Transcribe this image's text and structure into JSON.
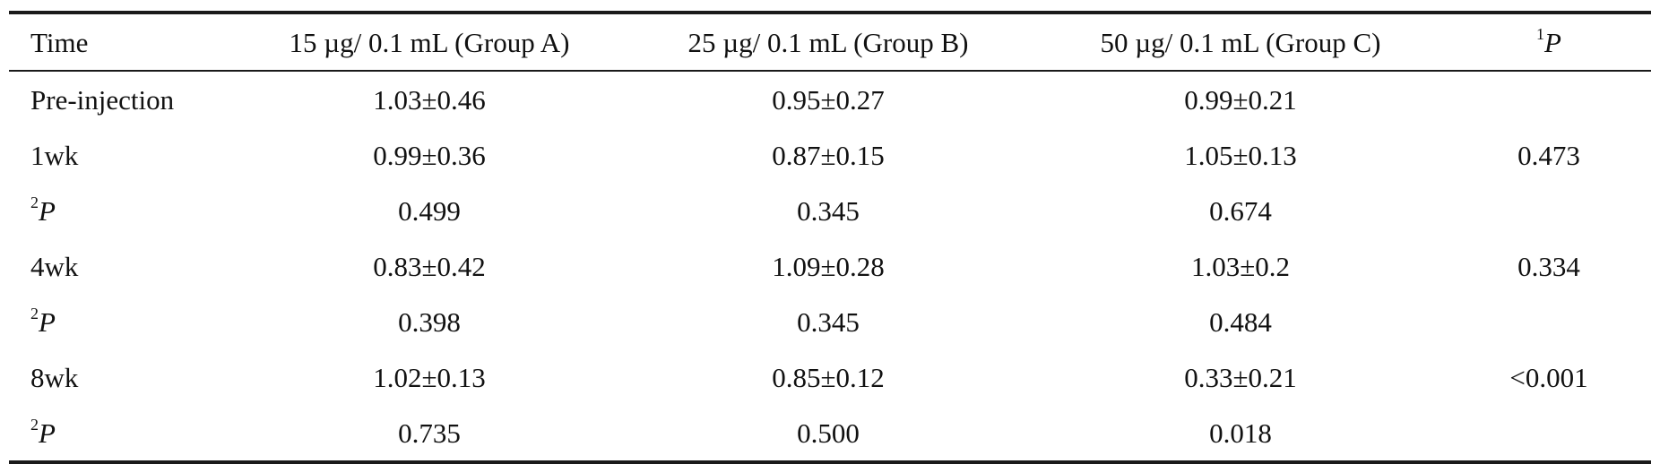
{
  "table": {
    "headers": {
      "time": "Time",
      "group_a": "15 µg/ 0.1 mL (Group A)",
      "group_b": "25 µg/ 0.1 mL (Group B)",
      "group_c": "50 µg/ 0.1 mL (Group C)",
      "p_sup": "1",
      "p_letter": "P"
    },
    "rows": [
      {
        "time": "Pre-injection",
        "time_sup": "",
        "a": "1.03±0.46",
        "b": "0.95±0.27",
        "c": "0.99±0.21",
        "p": ""
      },
      {
        "time": "1wk",
        "time_sup": "",
        "a": "0.99±0.36",
        "b": "0.87±0.15",
        "c": "1.05±0.13",
        "p": "0.473"
      },
      {
        "time": "P",
        "time_sup": "2",
        "a": "0.499",
        "b": "0.345",
        "c": "0.674",
        "p": ""
      },
      {
        "time": "4wk",
        "time_sup": "",
        "a": "0.83±0.42",
        "b": "1.09±0.28",
        "c": "1.03±0.2",
        "p": "0.334"
      },
      {
        "time": "P",
        "time_sup": "2",
        "a": "0.398",
        "b": "0.345",
        "c": "0.484",
        "p": ""
      },
      {
        "time": "8wk",
        "time_sup": "",
        "a": "1.02±0.13",
        "b": "0.85±0.12",
        "c": "0.33±0.21",
        "p": "<0.001"
      },
      {
        "time": "P",
        "time_sup": "2",
        "a": "0.735",
        "b": "0.500",
        "c": "0.018",
        "p": ""
      }
    ]
  }
}
